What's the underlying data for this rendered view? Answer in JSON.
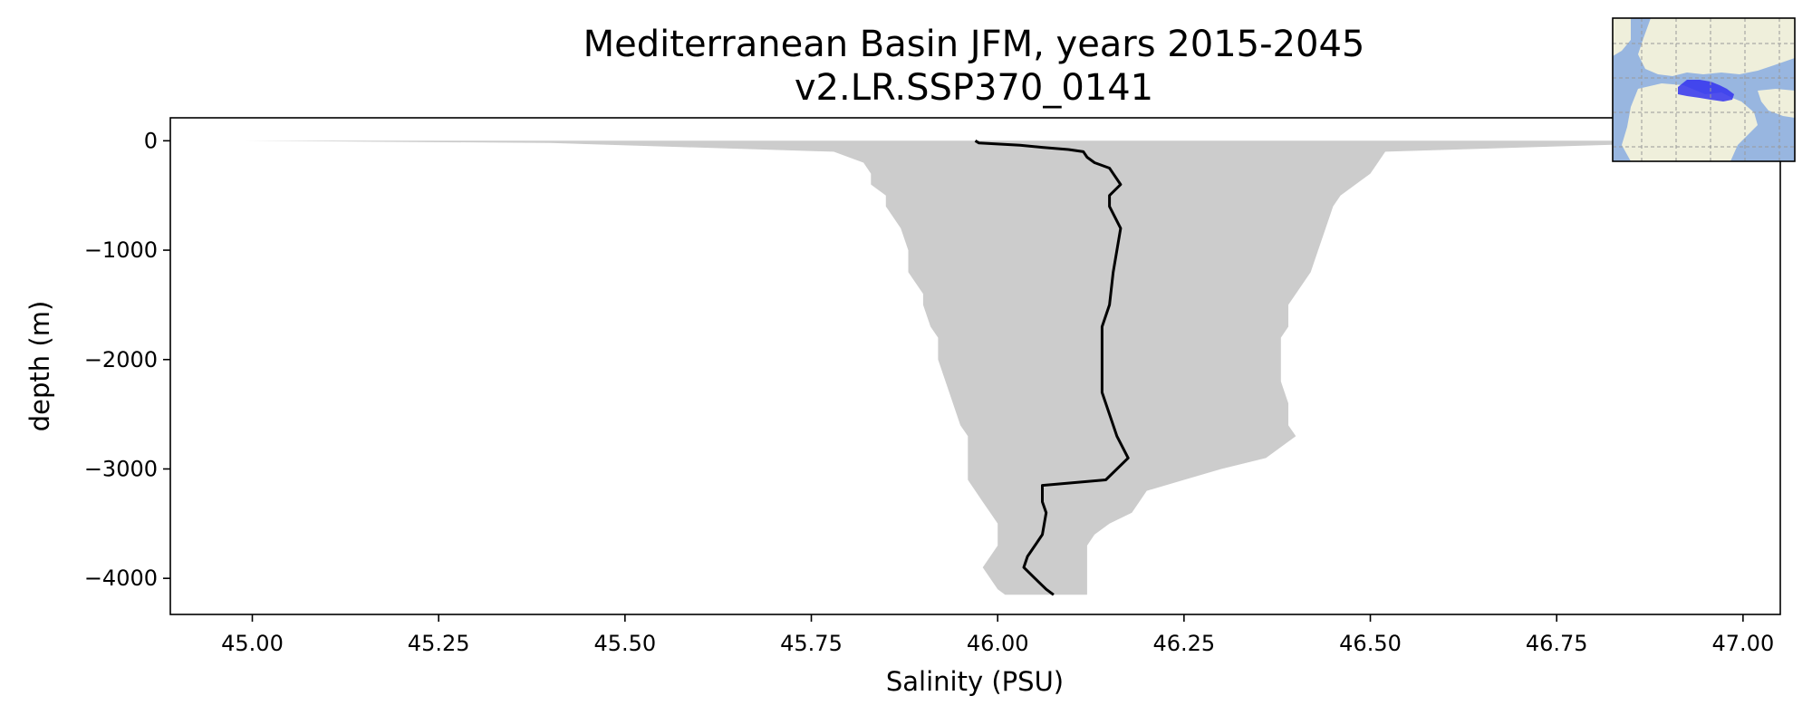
{
  "chart_data": {
    "type": "line",
    "title": "Mediterranean Basin JFM, years 2015-2045",
    "subtitle": "v2.LR.SSP370_0141",
    "xlabel": "Salinity (PSU)",
    "ylabel": "depth (m)",
    "xlim": [
      44.89,
      47.05
    ],
    "ylim": [
      -4330,
      210
    ],
    "x_ticks": [
      45.0,
      45.25,
      45.5,
      45.75,
      46.0,
      46.25,
      46.5,
      46.75,
      47.0
    ],
    "x_tick_labels": [
      "45.00",
      "45.25",
      "45.50",
      "45.75",
      "46.00",
      "46.25",
      "46.50",
      "46.75",
      "47.00"
    ],
    "y_ticks": [
      0,
      -1000,
      -2000,
      -3000,
      -4000
    ],
    "y_tick_labels": [
      "0",
      "−1000",
      "−2000",
      "−3000",
      "−4000"
    ],
    "grid": false,
    "legend": false,
    "colors": {
      "line": "#000000",
      "band": "#cccccc",
      "axes": "#000000"
    },
    "series": [
      {
        "values_depth": [
          0,
          -20,
          -40,
          -60,
          -80,
          -100,
          -150,
          -200,
          -250,
          -300,
          -400,
          -500,
          -600,
          -800,
          -1000,
          -1200,
          -1500,
          -1700,
          -2000,
          -2300,
          -2600,
          -2700,
          -2900,
          -3100,
          -3150,
          -3300,
          -3400,
          -3600,
          -3700,
          -3800,
          -3900,
          -4000,
          -4100,
          -4150
        ],
        "values_salinity": [
          45.97,
          45.975,
          46.03,
          46.06,
          46.095,
          46.115,
          46.12,
          46.13,
          46.15,
          46.155,
          46.165,
          46.15,
          46.15,
          46.165,
          46.16,
          46.155,
          46.15,
          46.14,
          46.14,
          46.14,
          46.155,
          46.16,
          46.175,
          46.145,
          46.06,
          46.06,
          46.065,
          46.06,
          46.05,
          46.04,
          46.035,
          46.05,
          46.065,
          46.075
        ]
      }
    ],
    "band": {
      "depth": [
        0,
        -20,
        -100,
        -200,
        -300,
        -400,
        -500,
        -600,
        -800,
        -1000,
        -1200,
        -1400,
        -1500,
        -1700,
        -1800,
        -2000,
        -2200,
        -2400,
        -2600,
        -2700,
        -2900,
        -3000,
        -3100,
        -3200,
        -3300,
        -3400,
        -3500,
        -3600,
        -3700,
        -3800,
        -3900,
        -4000,
        -4100,
        -4150
      ],
      "min": [
        44.99,
        45.4,
        45.78,
        45.82,
        45.83,
        45.83,
        45.85,
        45.85,
        45.87,
        45.88,
        45.88,
        45.9,
        45.9,
        45.91,
        45.92,
        45.92,
        45.93,
        45.94,
        45.95,
        45.96,
        45.96,
        45.96,
        45.96,
        45.97,
        45.98,
        45.99,
        46.0,
        46.0,
        46.0,
        45.99,
        45.98,
        45.99,
        46.0,
        46.01
      ],
      "max": [
        47.0,
        46.9,
        46.52,
        46.51,
        46.5,
        46.48,
        46.46,
        46.45,
        46.44,
        46.43,
        46.42,
        46.4,
        46.39,
        46.39,
        46.38,
        46.38,
        46.38,
        46.39,
        46.39,
        46.4,
        46.36,
        46.3,
        46.25,
        46.2,
        46.19,
        46.18,
        46.15,
        46.13,
        46.12,
        46.12,
        46.12,
        46.12,
        46.12,
        46.12
      ]
    }
  },
  "inset_map": {
    "icons": [
      "world-map-icon",
      "mediterranean-region-highlight"
    ],
    "colors": {
      "ocean": "#98b6e0",
      "land": "#efefdb",
      "region": "#3333ee",
      "gridline": "#9a9a9a"
    }
  }
}
